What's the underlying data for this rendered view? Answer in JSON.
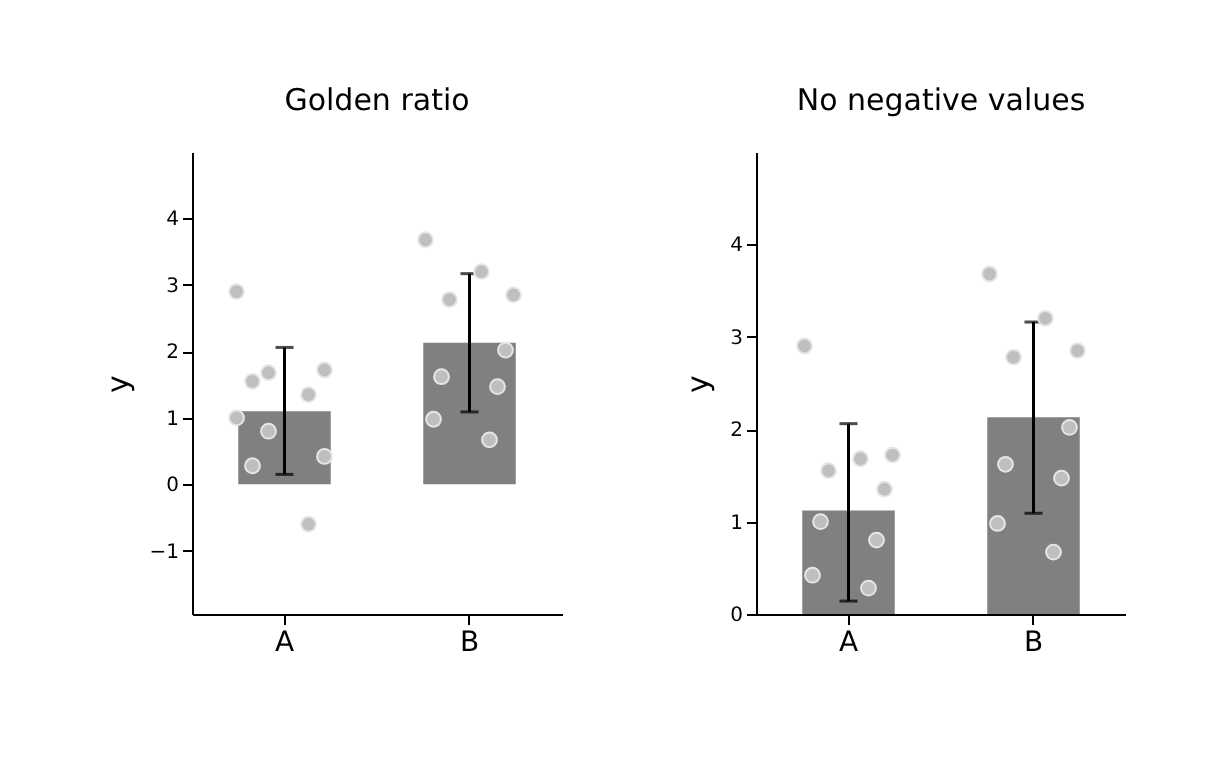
{
  "chart_data": [
    {
      "type": "bar",
      "title": "Golden ratio",
      "ylabel": "y",
      "categories": [
        "A",
        "B"
      ],
      "ylim": [
        -1.95,
        5
      ],
      "yticks": [
        -1,
        0,
        1,
        2,
        3,
        4
      ],
      "grid": false,
      "legend": false,
      "series": [
        {
          "type": "bar",
          "color": "#808080",
          "values": [
            1.1,
            2.13
          ],
          "errors": [
            [
              0.15,
              2.06
            ],
            [
              1.09,
              3.17
            ]
          ]
        },
        {
          "type": "scatter",
          "color": "#bfbfbf",
          "x": [
            "A",
            "A",
            "A",
            "A",
            "A",
            "A",
            "A",
            "A",
            "A",
            "A",
            "B",
            "B",
            "B",
            "B",
            "B",
            "B",
            "B",
            "B",
            "B"
          ],
          "values": [
            2.9,
            1.68,
            1.72,
            1.55,
            1.35,
            1.0,
            0.8,
            0.42,
            0.28,
            -0.6,
            3.68,
            3.2,
            2.85,
            2.78,
            2.02,
            1.62,
            1.47,
            0.98,
            0.67
          ]
        }
      ]
    },
    {
      "type": "bar",
      "title": "No negative values",
      "ylabel": "y",
      "categories": [
        "A",
        "B"
      ],
      "ylim": [
        0,
        5
      ],
      "yticks": [
        0,
        1,
        2,
        3,
        4
      ],
      "grid": false,
      "legend": false,
      "series": [
        {
          "type": "bar",
          "color": "#808080",
          "values": [
            1.12,
            2.13
          ],
          "errors": [
            [
              0.14,
              2.06
            ],
            [
              1.09,
              3.16
            ]
          ]
        },
        {
          "type": "scatter",
          "color": "#bfbfbf",
          "x": [
            "A",
            "A",
            "A",
            "A",
            "A",
            "A",
            "A",
            "A",
            "A",
            "B",
            "B",
            "B",
            "B",
            "B",
            "B",
            "B",
            "B",
            "B"
          ],
          "values": [
            2.9,
            1.68,
            1.72,
            1.55,
            1.35,
            1.0,
            0.8,
            0.42,
            0.28,
            3.68,
            3.2,
            2.85,
            2.78,
            2.02,
            1.62,
            1.47,
            0.98,
            0.67
          ]
        }
      ]
    }
  ]
}
